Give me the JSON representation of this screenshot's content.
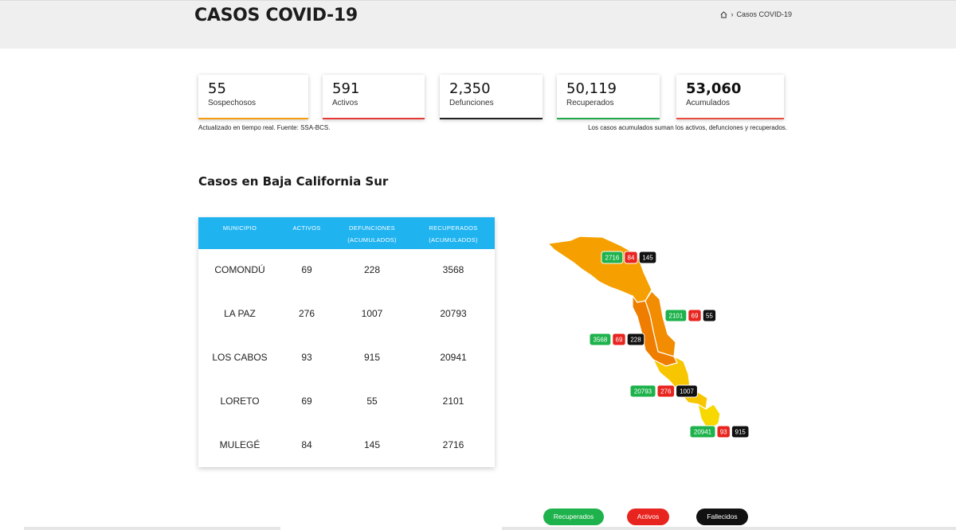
{
  "header": {
    "title": "CASOS COVID-19",
    "breadcrumb": {
      "current": "Casos COVID-19"
    }
  },
  "stats": [
    {
      "value": "55",
      "label": "Sospechosos",
      "color": "#f39c12",
      "bold": false
    },
    {
      "value": "591",
      "label": "Activos",
      "color": "#e53935",
      "bold": false
    },
    {
      "value": "2,350",
      "label": "Defunciones",
      "color": "#222222",
      "bold": false
    },
    {
      "value": "50,119",
      "label": "Recuperados",
      "color": "#22a94b",
      "bold": false
    },
    {
      "value": "53,060",
      "label": "Acumulados",
      "color": "#e74c3c",
      "bold": true
    }
  ],
  "notes": {
    "left": "Actualizado en tiempo real. Fuente: SSA-BCS.",
    "right": "Los casos acumulados suman los activos, defunciones y recuperados."
  },
  "section_title": "Casos en Baja California Sur",
  "table": {
    "headers": {
      "municipio": "MUNICIPIO",
      "activos": "ACTIVOS",
      "def_1": "DEFUNCIONES",
      "def_2": "(ACUMULADOS)",
      "rec_1": "RECUPERADOS",
      "rec_2": "(ACUMULADOS)"
    },
    "rows": [
      {
        "municipio": "COMONDÚ",
        "activos": "69",
        "defunciones": "228",
        "recuperados": "3568"
      },
      {
        "municipio": "LA PAZ",
        "activos": "276",
        "defunciones": "1007",
        "recuperados": "20793"
      },
      {
        "municipio": "LOS CABOS",
        "activos": "93",
        "defunciones": "915",
        "recuperados": "20941"
      },
      {
        "municipio": "LORETO",
        "activos": "69",
        "defunciones": "55",
        "recuperados": "2101"
      },
      {
        "municipio": "MULEGÉ",
        "activos": "84",
        "defunciones": "145",
        "recuperados": "2716"
      }
    ]
  },
  "map": {
    "colors": {
      "mulege": "#f5a000",
      "loreto": "#f28c00",
      "comondu": "#ef7d00",
      "lapaz": "#f7c600",
      "loscabos": "#f7d800"
    },
    "badges": [
      {
        "id": "mulege",
        "rec": "2716",
        "act": "84",
        "def": "145"
      },
      {
        "id": "loreto",
        "rec": "2101",
        "act": "69",
        "def": "55"
      },
      {
        "id": "comondu",
        "rec": "3568",
        "act": "69",
        "def": "228"
      },
      {
        "id": "lapaz",
        "rec": "20793",
        "act": "276",
        "def": "1007"
      },
      {
        "id": "loscabos",
        "rec": "20941",
        "act": "93",
        "def": "915"
      }
    ]
  },
  "legend": {
    "recuperados": "Recuperados",
    "activos": "Activos",
    "fallecidos": "Fallecidos"
  },
  "colors": {
    "green": "#1db24b",
    "red": "#e8241f",
    "black": "#111111",
    "header_blue": "#1fb3f0"
  }
}
